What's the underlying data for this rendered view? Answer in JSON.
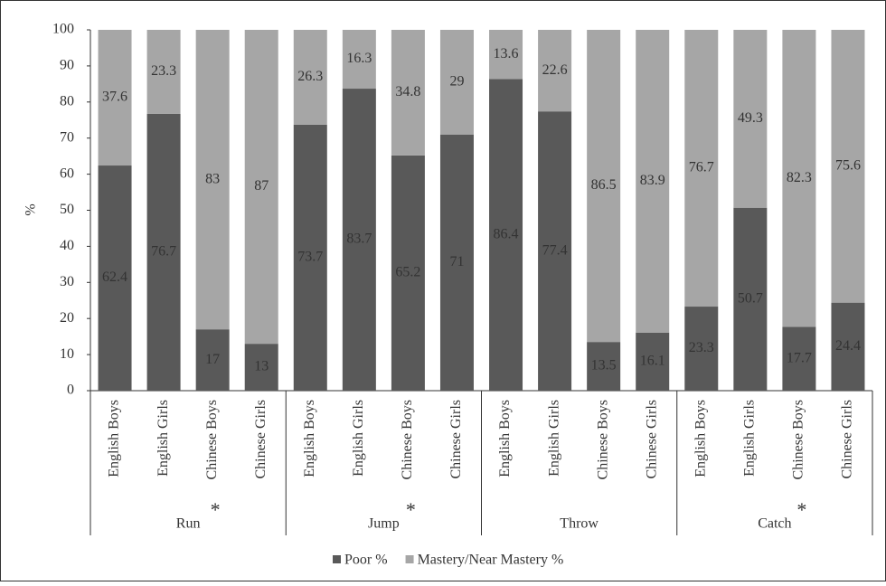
{
  "chart_data": {
    "type": "stacked_bar",
    "y_label": "%",
    "ylim": [
      0,
      100
    ],
    "yticks": [
      0,
      10,
      20,
      30,
      40,
      50,
      60,
      70,
      80,
      90,
      100
    ],
    "groups": [
      {
        "label": "Run",
        "categories": [
          "English Boys",
          "English Girls",
          "Chinese Boys",
          "Chinese Girls"
        ]
      },
      {
        "label": "Jump",
        "categories": [
          "English Boys",
          "English Girls",
          "Chinese Boys",
          "Chinese Girls"
        ]
      },
      {
        "label": "Throw",
        "categories": [
          "English Boys",
          "English Girls",
          "Chinese Boys",
          "Chinese Girls"
        ]
      },
      {
        "label": "Catch",
        "categories": [
          "English Boys",
          "English Girls",
          "Chinese Boys",
          "Chinese Girls"
        ]
      }
    ],
    "series": [
      {
        "name": "Poor %",
        "color": "#595959",
        "values": [
          62.4,
          76.7,
          17,
          13,
          73.7,
          83.7,
          65.2,
          71,
          86.4,
          77.4,
          13.5,
          16.1,
          23.3,
          50.7,
          17.7,
          24.4
        ]
      },
      {
        "name": "Mastery/Near Mastery %",
        "color": "#a6a6a6",
        "values": [
          37.6,
          23.3,
          83,
          87,
          26.3,
          16.3,
          34.8,
          29,
          13.6,
          22.6,
          86.5,
          83.9,
          76.7,
          49.3,
          82.3,
          75.6
        ]
      }
    ],
    "annotations": [
      {
        "text": "*",
        "group": "Run",
        "category": "Chinese Boys"
      },
      {
        "text": "*",
        "group": "Jump",
        "category": "Chinese Boys"
      },
      {
        "text": "*",
        "group": "Catch",
        "category": "Chinese Boys"
      }
    ],
    "legend": "bottom"
  }
}
